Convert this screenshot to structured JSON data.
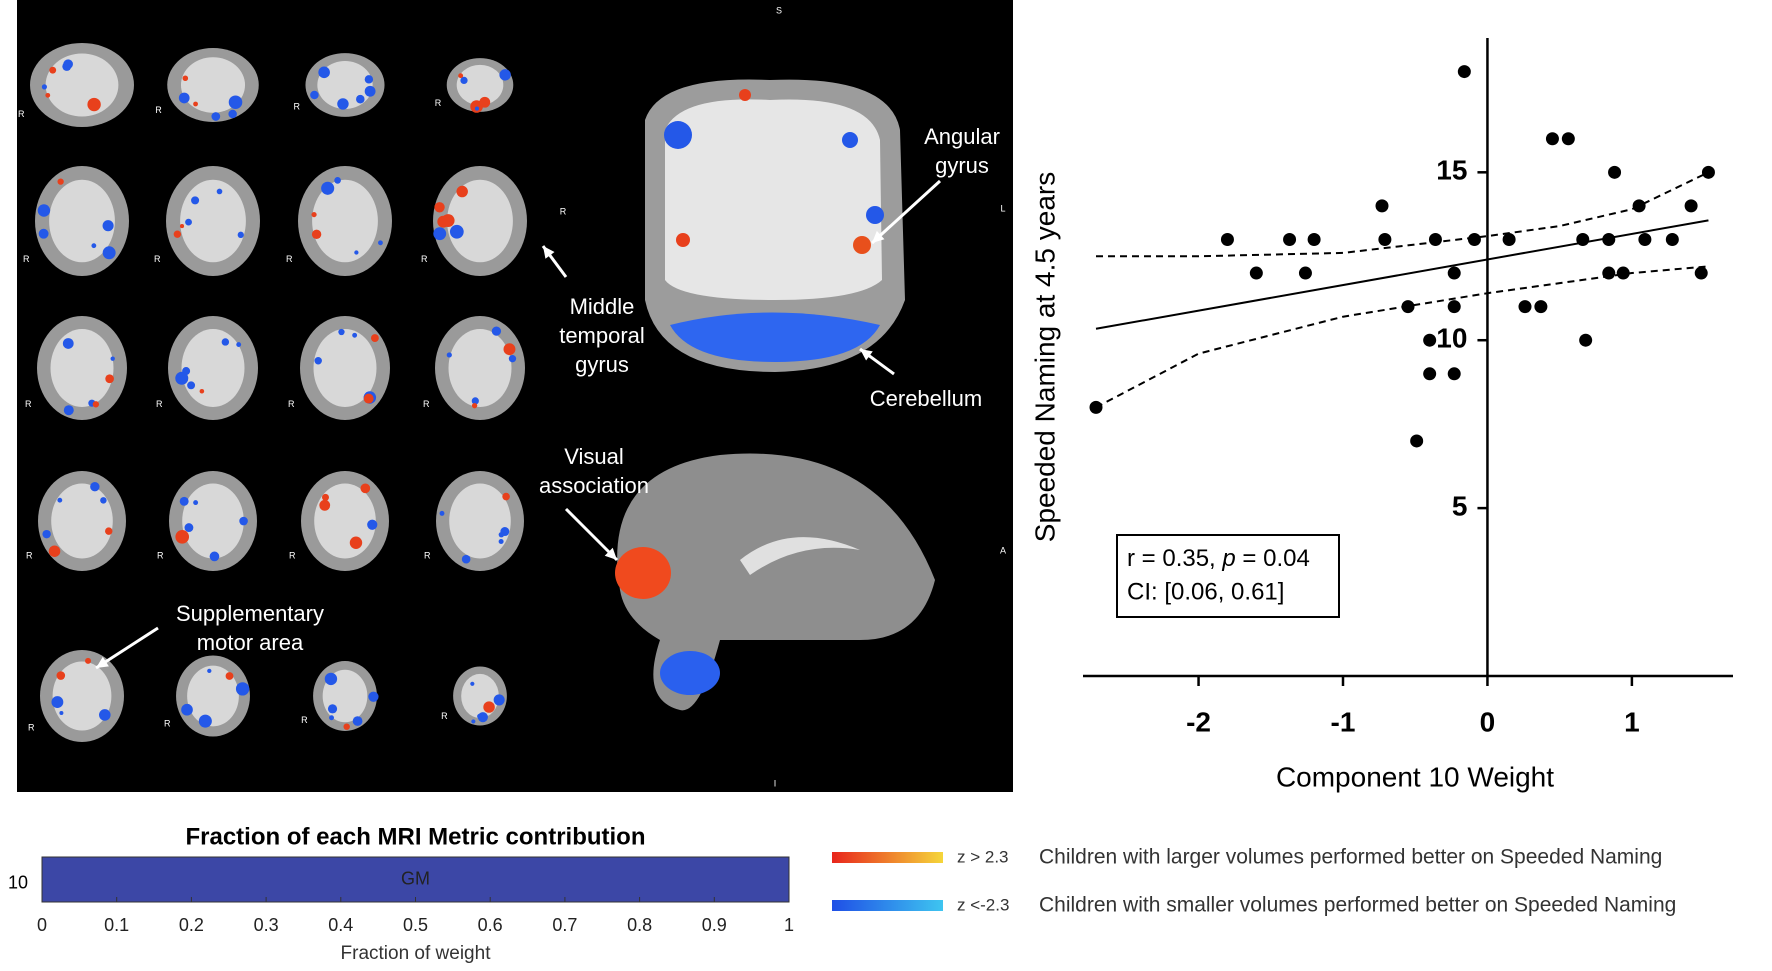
{
  "brain_figure": {
    "orientation": [
      "S",
      "R",
      "L",
      "A",
      "I"
    ],
    "slice_side": "R",
    "labels": {
      "angular": [
        "Angular",
        "gyrus"
      ],
      "middle_temporal": [
        "Middle",
        "temporal",
        "gyrus"
      ],
      "cerebellum": [
        "Cerebellum"
      ],
      "visual": [
        "Visual",
        "association"
      ],
      "supplementary": [
        "Supplementary",
        "motor area"
      ]
    }
  },
  "chart_data": [
    {
      "type": "scatter",
      "xlabel": "Component 10 Weight",
      "ylabel": "Speeded Naming at 4.5 years",
      "color": "#000000",
      "x": [
        -2.71,
        -1.8,
        -1.6,
        -1.37,
        -1.26,
        -1.2,
        -0.73,
        -0.71,
        -0.55,
        -0.49,
        -0.4,
        -0.4,
        -0.36,
        -0.23,
        -0.23,
        -0.23,
        -0.16,
        -0.09,
        0.15,
        0.26,
        0.37,
        0.45,
        0.56,
        0.66,
        0.68,
        0.84,
        0.84,
        0.88,
        0.94,
        1.05,
        1.09,
        1.28,
        1.41,
        1.48,
        1.53
      ],
      "values": [
        8,
        13,
        12,
        13,
        12,
        13,
        14,
        13,
        11,
        7,
        10,
        9,
        13,
        12,
        11,
        9,
        18,
        13,
        13,
        11,
        11,
        16,
        16,
        13,
        10,
        13,
        12,
        15,
        12,
        14,
        13,
        13,
        14,
        12,
        15
      ],
      "fit": {
        "x": [
          -2.71,
          1.53
        ],
        "values": [
          10.34,
          13.57
        ]
      },
      "ci_upper": {
        "x": [
          -2.71,
          -2,
          -1,
          0,
          0.5,
          1,
          1.53
        ],
        "values": [
          12.5,
          12.5,
          12.6,
          13.1,
          13.4,
          13.9,
          15
        ]
      },
      "ci_lower": {
        "x": [
          -2.71,
          -2,
          -1,
          0,
          0.5,
          1,
          1.53
        ],
        "values": [
          8,
          9.6,
          10.7,
          11.4,
          11.7,
          12,
          12.2
        ]
      },
      "xlim": [
        -2.8,
        1.7
      ],
      "ylim": [
        0,
        19
      ],
      "xticks": [
        -2,
        -1,
        0,
        1
      ],
      "yticks": [
        5,
        10,
        15
      ],
      "annotation": {
        "prefix": "r = 0.35, ",
        "italic": "p",
        "suffix": " = 0.04",
        "line2": "CI: [0.06, 0.61]"
      }
    },
    {
      "type": "bar",
      "orientation": "horizontal",
      "title": "Fraction of each MRI Metric contribution",
      "categories": [
        "10"
      ],
      "series": [
        {
          "name": "GM",
          "color": "#3c47a6",
          "values": [
            1
          ]
        }
      ],
      "xlim": [
        0,
        1
      ],
      "xticks": [
        0,
        0.1,
        0.2,
        0.3,
        0.4,
        0.5,
        0.6,
        0.7,
        0.8,
        0.9,
        1
      ],
      "xlabel": "Fraction of weight"
    }
  ],
  "legend": [
    {
      "label": "z > 2.3",
      "text": "Children with larger volumes performed better on Speeded Naming",
      "colors": [
        "#e8251c",
        "#f5d63a"
      ]
    },
    {
      "label": "z <-2.3",
      "text": "Children with smaller volumes performed better on Speeded Naming",
      "colors": [
        "#1f4fe6",
        "#3ec5f0"
      ]
    }
  ]
}
